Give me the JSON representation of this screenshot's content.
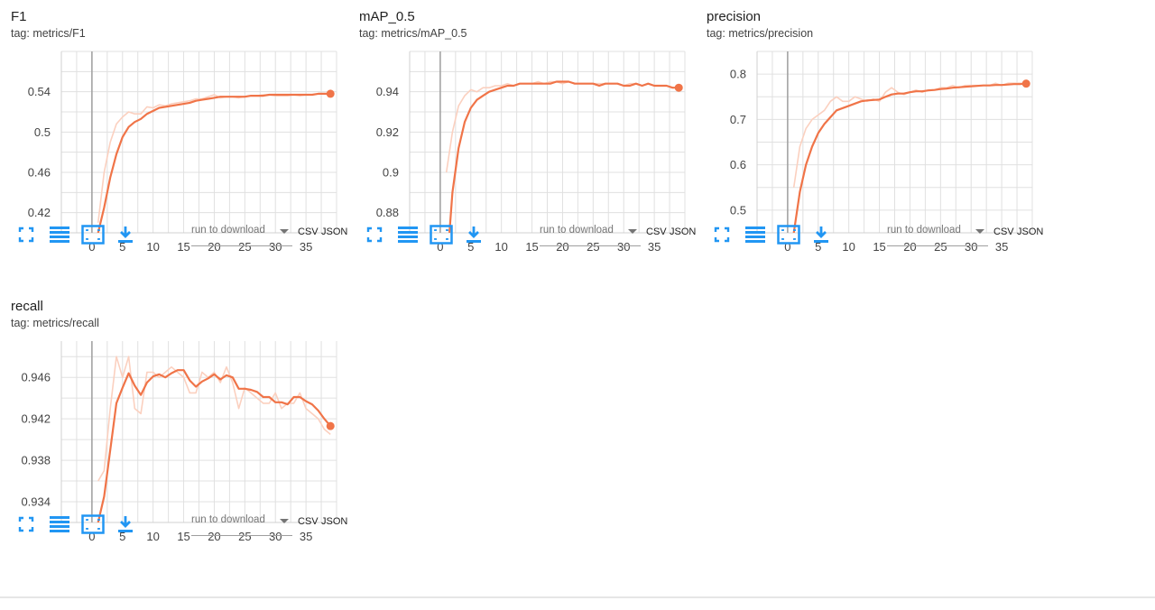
{
  "colors": {
    "smoothed": "#f07448",
    "raw": "#fbd0bf",
    "grid": "#e0e0e0",
    "axis": "#9e9e9e",
    "icon": "#2196f3"
  },
  "toolbar": {
    "fullscreen_icon": "fullscreen-icon",
    "data_table_icon": "list-icon",
    "fit_domain_icon": "fit-domain-icon",
    "download_icon": "download-icon",
    "run_select_placeholder": "run to download",
    "csv_label": "CSV",
    "json_label": "JSON"
  },
  "cards": [
    {
      "title": "F1",
      "tag": "tag: metrics/F1"
    },
    {
      "title": "mAP_0.5",
      "tag": "tag: metrics/mAP_0.5"
    },
    {
      "title": "precision",
      "tag": "tag: metrics/precision"
    },
    {
      "title": "recall",
      "tag": "tag: metrics/recall"
    }
  ],
  "chart_data": [
    {
      "type": "line",
      "title": "F1",
      "xlim": [
        -5,
        40
      ],
      "ylim": [
        0.4,
        0.58
      ],
      "xticks": [
        0,
        5,
        10,
        15,
        20,
        25,
        30,
        35
      ],
      "yticks": [
        0.42,
        0.46,
        0.5,
        0.54
      ],
      "ytick_labels": [
        "0.42",
        "0.46",
        "0.5",
        "0.54"
      ],
      "grid": true,
      "series": [
        {
          "kind": "raw",
          "x": [
            1,
            2,
            3,
            4,
            5,
            6,
            7,
            8,
            9,
            10,
            11,
            12,
            13,
            14,
            15,
            16,
            17,
            18,
            19,
            20,
            21,
            22,
            23,
            24,
            25,
            26,
            27,
            28,
            29,
            30,
            31,
            32,
            33,
            34,
            35,
            36,
            37,
            38,
            39
          ],
          "y": [
            0.41,
            0.46,
            0.49,
            0.508,
            0.515,
            0.52,
            0.518,
            0.518,
            0.525,
            0.524,
            0.527,
            0.526,
            0.528,
            0.529,
            0.53,
            0.531,
            0.533,
            0.533,
            0.535,
            0.537,
            0.534,
            0.535,
            0.535,
            0.534,
            0.535,
            0.536,
            0.536,
            0.537,
            0.537,
            0.536,
            0.536,
            0.536,
            0.537,
            0.536,
            0.537,
            0.537,
            0.538,
            0.538,
            0.538
          ]
        },
        {
          "kind": "smoothed",
          "x": [
            1,
            2,
            3,
            4,
            5,
            6,
            7,
            8,
            9,
            10,
            11,
            12,
            13,
            14,
            15,
            16,
            17,
            18,
            19,
            20,
            21,
            22,
            23,
            24,
            25,
            26,
            27,
            28,
            29,
            30,
            31,
            32,
            33,
            34,
            35,
            36,
            37,
            38,
            39
          ],
          "y": [
            0.4,
            0.425,
            0.455,
            0.478,
            0.495,
            0.505,
            0.51,
            0.513,
            0.518,
            0.521,
            0.524,
            0.525,
            0.526,
            0.527,
            0.528,
            0.529,
            0.531,
            0.532,
            0.533,
            0.534,
            0.535,
            0.535,
            0.535,
            0.535,
            0.535,
            0.536,
            0.536,
            0.536,
            0.537,
            0.537,
            0.537,
            0.537,
            0.537,
            0.537,
            0.537,
            0.537,
            0.538,
            0.538,
            0.538
          ]
        }
      ]
    },
    {
      "type": "line",
      "title": "mAP_0.5",
      "xlim": [
        -5,
        40
      ],
      "ylim": [
        0.87,
        0.96
      ],
      "xticks": [
        0,
        5,
        10,
        15,
        20,
        25,
        30,
        35
      ],
      "yticks": [
        0.88,
        0.9,
        0.92,
        0.94
      ],
      "ytick_labels": [
        "0.88",
        "0.9",
        "0.92",
        "0.94"
      ],
      "grid": true,
      "series": [
        {
          "kind": "raw",
          "x": [
            1,
            2,
            3,
            4,
            5,
            6,
            7,
            8,
            9,
            10,
            11,
            12,
            13,
            14,
            15,
            16,
            17,
            18,
            19,
            20,
            21,
            22,
            23,
            24,
            25,
            26,
            27,
            28,
            29,
            30,
            31,
            32,
            33,
            34,
            35,
            36,
            37,
            38,
            39
          ],
          "y": [
            0.9,
            0.92,
            0.933,
            0.938,
            0.941,
            0.94,
            0.942,
            0.942,
            0.943,
            0.943,
            0.944,
            0.943,
            0.944,
            0.944,
            0.944,
            0.945,
            0.944,
            0.945,
            0.945,
            0.944,
            0.945,
            0.944,
            0.944,
            0.944,
            0.944,
            0.944,
            0.944,
            0.944,
            0.944,
            0.943,
            0.944,
            0.944,
            0.943,
            0.944,
            0.943,
            0.943,
            0.943,
            0.942,
            0.942
          ]
        },
        {
          "kind": "smoothed",
          "x": [
            1.5,
            2,
            3,
            4,
            5,
            6,
            7,
            8,
            9,
            10,
            11,
            12,
            13,
            14,
            15,
            16,
            17,
            18,
            19,
            20,
            21,
            22,
            23,
            24,
            25,
            26,
            27,
            28,
            29,
            30,
            31,
            32,
            33,
            34,
            35,
            36,
            37,
            38,
            39
          ],
          "y": [
            0.87,
            0.89,
            0.912,
            0.925,
            0.932,
            0.936,
            0.938,
            0.94,
            0.941,
            0.942,
            0.943,
            0.943,
            0.944,
            0.944,
            0.944,
            0.944,
            0.944,
            0.944,
            0.945,
            0.945,
            0.945,
            0.944,
            0.944,
            0.944,
            0.944,
            0.943,
            0.944,
            0.944,
            0.944,
            0.943,
            0.943,
            0.944,
            0.943,
            0.944,
            0.943,
            0.943,
            0.943,
            0.942,
            0.942
          ]
        }
      ]
    },
    {
      "type": "line",
      "title": "precision",
      "xlim": [
        -5,
        40
      ],
      "ylim": [
        0.45,
        0.85
      ],
      "xticks": [
        0,
        5,
        10,
        15,
        20,
        25,
        30,
        35
      ],
      "yticks": [
        0.5,
        0.6,
        0.7,
        0.8
      ],
      "ytick_labels": [
        "0.5",
        "0.6",
        "0.7",
        "0.8"
      ],
      "grid": true,
      "series": [
        {
          "kind": "raw",
          "x": [
            1,
            2,
            3,
            4,
            5,
            6,
            7,
            8,
            9,
            10,
            11,
            12,
            13,
            14,
            15,
            16,
            17,
            18,
            19,
            20,
            21,
            22,
            23,
            24,
            25,
            26,
            27,
            28,
            29,
            30,
            31,
            32,
            33,
            34,
            35,
            36,
            37,
            38,
            39
          ],
          "y": [
            0.55,
            0.64,
            0.68,
            0.7,
            0.71,
            0.72,
            0.74,
            0.75,
            0.74,
            0.74,
            0.75,
            0.745,
            0.74,
            0.745,
            0.74,
            0.76,
            0.77,
            0.76,
            0.755,
            0.76,
            0.765,
            0.76,
            0.765,
            0.765,
            0.77,
            0.77,
            0.775,
            0.77,
            0.775,
            0.775,
            0.775,
            0.775,
            0.775,
            0.78,
            0.775,
            0.78,
            0.78,
            0.78,
            0.78
          ]
        },
        {
          "kind": "smoothed",
          "x": [
            1,
            2,
            3,
            4,
            5,
            6,
            7,
            8,
            9,
            10,
            11,
            12,
            13,
            14,
            15,
            16,
            17,
            18,
            19,
            20,
            21,
            22,
            23,
            24,
            25,
            26,
            27,
            28,
            29,
            30,
            31,
            32,
            33,
            34,
            35,
            36,
            37,
            38,
            39
          ],
          "y": [
            0.45,
            0.54,
            0.6,
            0.64,
            0.67,
            0.69,
            0.705,
            0.72,
            0.725,
            0.73,
            0.735,
            0.74,
            0.742,
            0.743,
            0.744,
            0.75,
            0.755,
            0.757,
            0.757,
            0.76,
            0.762,
            0.762,
            0.764,
            0.765,
            0.767,
            0.768,
            0.77,
            0.771,
            0.772,
            0.773,
            0.774,
            0.775,
            0.775,
            0.776,
            0.776,
            0.777,
            0.778,
            0.778,
            0.779
          ]
        }
      ]
    },
    {
      "type": "line",
      "title": "recall",
      "xlim": [
        -5,
        40
      ],
      "ylim": [
        0.932,
        0.9495
      ],
      "xticks": [
        0,
        5,
        10,
        15,
        20,
        25,
        30,
        35
      ],
      "yticks": [
        0.934,
        0.938,
        0.942,
        0.946
      ],
      "ytick_labels": [
        "0.934",
        "0.938",
        "0.942",
        "0.946"
      ],
      "grid": true,
      "series": [
        {
          "kind": "raw",
          "x": [
            1,
            2,
            3,
            4,
            5,
            6,
            7,
            8,
            9,
            10,
            11,
            12,
            13,
            14,
            15,
            16,
            17,
            18,
            19,
            20,
            21,
            22,
            23,
            24,
            25,
            26,
            27,
            28,
            29,
            30,
            31,
            32,
            33,
            34,
            35,
            36,
            37,
            38,
            39
          ],
          "y": [
            0.936,
            0.937,
            0.943,
            0.948,
            0.946,
            0.948,
            0.943,
            0.9425,
            0.9465,
            0.9465,
            0.946,
            0.9465,
            0.947,
            0.9465,
            0.946,
            0.9445,
            0.9445,
            0.9465,
            0.946,
            0.9465,
            0.9455,
            0.947,
            0.9455,
            0.943,
            0.945,
            0.9445,
            0.944,
            0.9435,
            0.9435,
            0.9445,
            0.943,
            0.9435,
            0.9435,
            0.9445,
            0.943,
            0.9425,
            0.942,
            0.941,
            0.9405
          ]
        },
        {
          "kind": "smoothed",
          "x": [
            1,
            2,
            3,
            4,
            5,
            6,
            7,
            8,
            9,
            10,
            11,
            12,
            13,
            14,
            15,
            16,
            17,
            18,
            19,
            20,
            21,
            22,
            23,
            24,
            25,
            26,
            27,
            28,
            29,
            30,
            31,
            32,
            33,
            34,
            35,
            36,
            37,
            38,
            39
          ],
          "y": [
            0.932,
            0.9345,
            0.939,
            0.9435,
            0.945,
            0.9464,
            0.9452,
            0.9443,
            0.9455,
            0.9461,
            0.9463,
            0.946,
            0.9464,
            0.9467,
            0.9467,
            0.9457,
            0.9451,
            0.9456,
            0.9459,
            0.9463,
            0.9458,
            0.9462,
            0.946,
            0.9449,
            0.9449,
            0.9448,
            0.9446,
            0.9441,
            0.9441,
            0.9436,
            0.9436,
            0.9434,
            0.9441,
            0.9441,
            0.9437,
            0.9434,
            0.9428,
            0.942,
            0.9413
          ]
        }
      ]
    }
  ]
}
